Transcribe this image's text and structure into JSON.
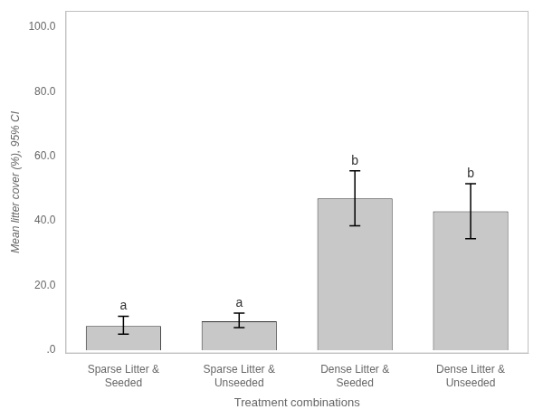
{
  "chart_data": {
    "type": "bar",
    "categories": [
      "Sparse Litter &\nSeeded",
      "Sparse Litter &\nUnseeded",
      "Dense Litter &\nSeeded",
      "Dense Litter &\nUnseeded"
    ],
    "values": [
      7.5,
      9.0,
      47.0,
      43.0
    ],
    "errors_upper": [
      3.0,
      2.5,
      8.5,
      8.5
    ],
    "errors_lower": [
      2.5,
      2.0,
      8.5,
      8.5
    ],
    "significance_labels": [
      "a",
      "a",
      "b",
      "b"
    ],
    "color": "#c8c8c8",
    "xlabel": "Treatment combinations",
    "ylabel": "Mean litter cover (%), 95% CI",
    "ylim": [
      -1,
      105
    ],
    "yticks": [
      {
        "value": 0,
        "label": ".0"
      },
      {
        "value": 20,
        "label": "20.0"
      },
      {
        "value": 40,
        "label": "40.0"
      },
      {
        "value": 60,
        "label": "60.0"
      },
      {
        "value": 80,
        "label": "80.0"
      },
      {
        "value": 100,
        "label": "100.0"
      }
    ],
    "grid": false
  }
}
